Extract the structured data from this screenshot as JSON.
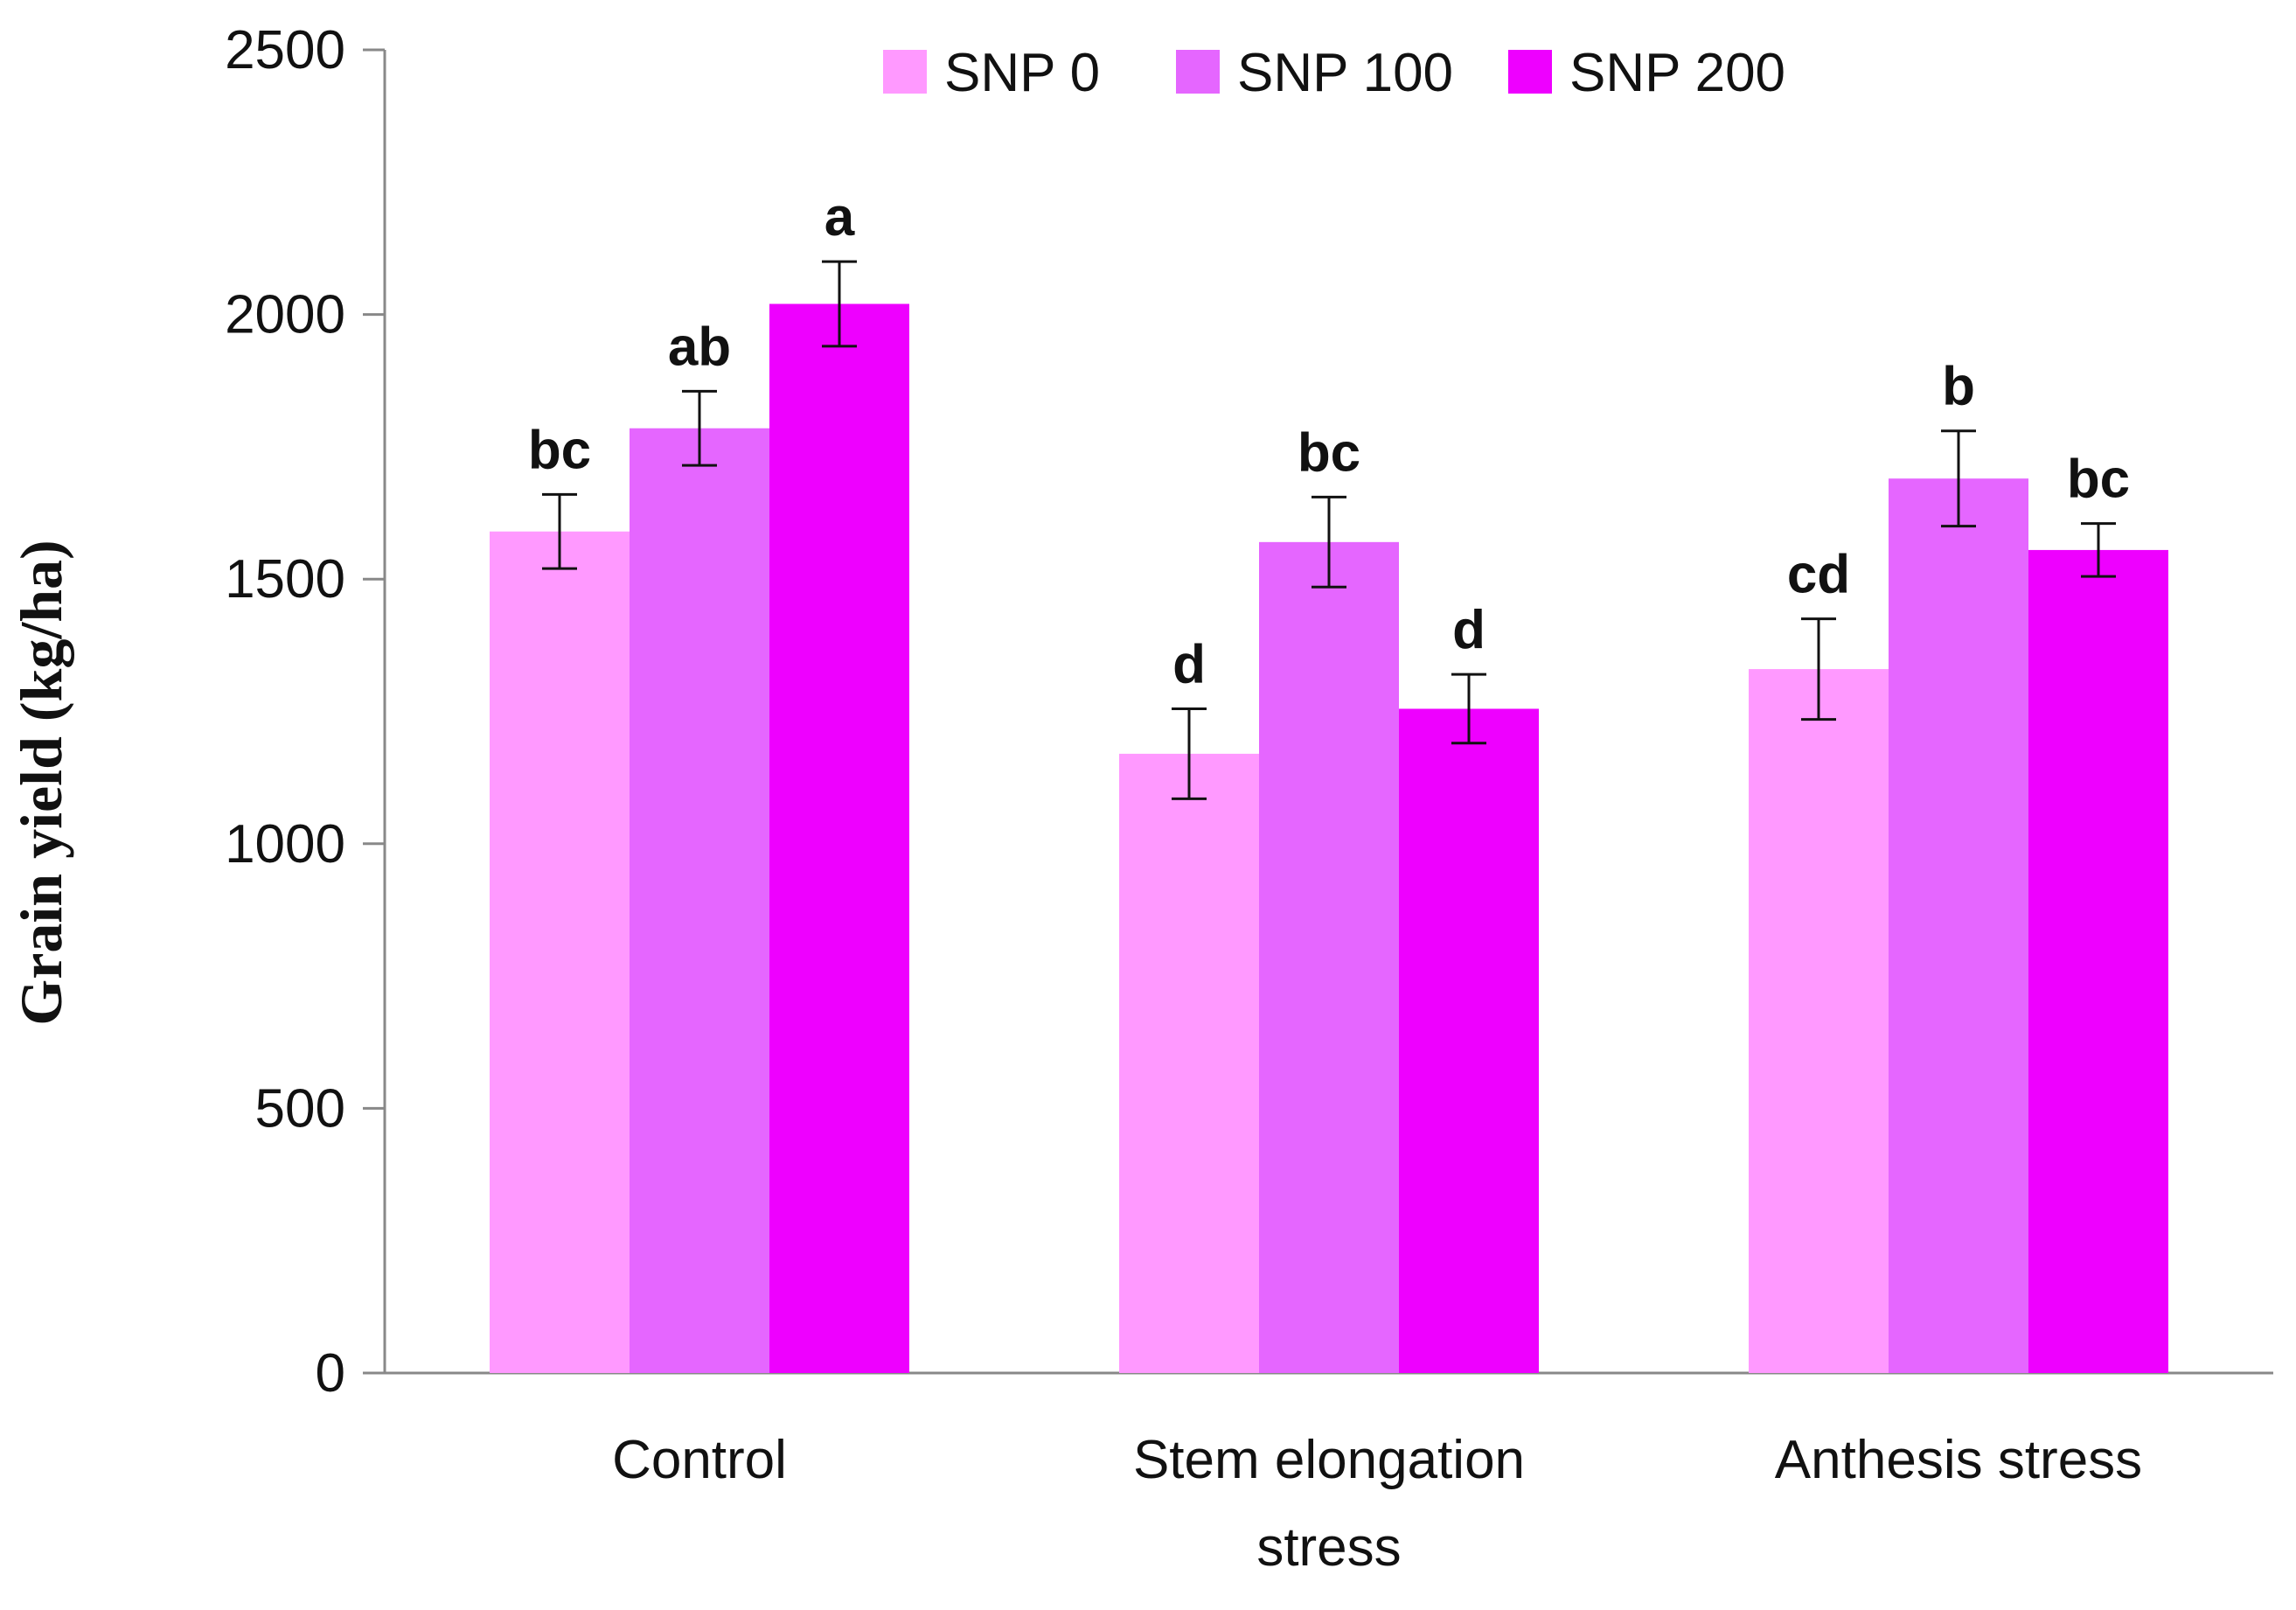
{
  "chart_data": {
    "type": "bar",
    "title": "",
    "xlabel": "",
    "ylabel": "Grain yield (kg/ha)",
    "ylim": [
      0,
      2500
    ],
    "yticks": [
      0,
      500,
      1000,
      1500,
      2000,
      2500
    ],
    "ytick_labels": [
      "0",
      "500",
      "1000",
      "1500",
      "2000",
      "2500"
    ],
    "grid": false,
    "legend_position": "top-center",
    "categories": [
      [
        "Control"
      ],
      [
        "Stem elongation",
        "stress"
      ],
      [
        "Anthesis stress"
      ]
    ],
    "series": [
      {
        "name": "SNP 0",
        "color": "#FF99FF",
        "values": [
          1590,
          1170,
          1330
        ],
        "errors": [
          70,
          85,
          95
        ],
        "labels": [
          "bc",
          "d",
          "cd"
        ]
      },
      {
        "name": "SNP 100",
        "color": "#E566FF",
        "values": [
          1785,
          1570,
          1690
        ],
        "errors": [
          70,
          85,
          90
        ],
        "labels": [
          "ab",
          "bc",
          "b"
        ]
      },
      {
        "name": "SNP 200",
        "color": "#EE00FF",
        "values": [
          2020,
          1255,
          1555
        ],
        "errors": [
          80,
          65,
          50
        ],
        "labels": [
          "a",
          "d",
          "bc"
        ]
      }
    ]
  }
}
